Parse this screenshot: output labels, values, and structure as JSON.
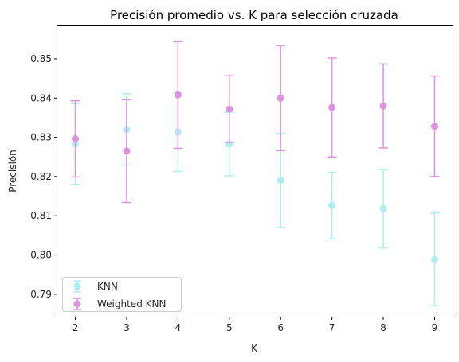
{
  "chart_data": {
    "type": "scatter",
    "title": "Precisión promedio vs. K para selección cruzada",
    "xlabel": "K",
    "ylabel": "Precisión",
    "x": [
      2,
      3,
      4,
      5,
      6,
      7,
      8,
      9
    ],
    "xlim": [
      1.65,
      9.35
    ],
    "ylim": [
      0.7843,
      0.8583
    ],
    "yticks": [
      0.79,
      0.8,
      0.81,
      0.82,
      0.83,
      0.84,
      0.85
    ],
    "grid": false,
    "legend_position": "lower-left",
    "series": [
      {
        "name": "KNN",
        "color": "#aeeef0",
        "values": [
          0.8283,
          0.832,
          0.8313,
          0.8283,
          0.819,
          0.8126,
          0.8118,
          0.7989
        ],
        "errors": [
          0.0103,
          0.0091,
          0.01,
          0.0081,
          0.012,
          0.0085,
          0.01,
          0.0118
        ]
      },
      {
        "name": "Weighted KNN",
        "color": "#dd93dd",
        "values": [
          0.8296,
          0.8265,
          0.8408,
          0.8372,
          0.84,
          0.8376,
          0.838,
          0.8328
        ],
        "errors": [
          0.0097,
          0.0131,
          0.0136,
          0.0085,
          0.0134,
          0.0126,
          0.0107,
          0.0128
        ]
      }
    ]
  }
}
